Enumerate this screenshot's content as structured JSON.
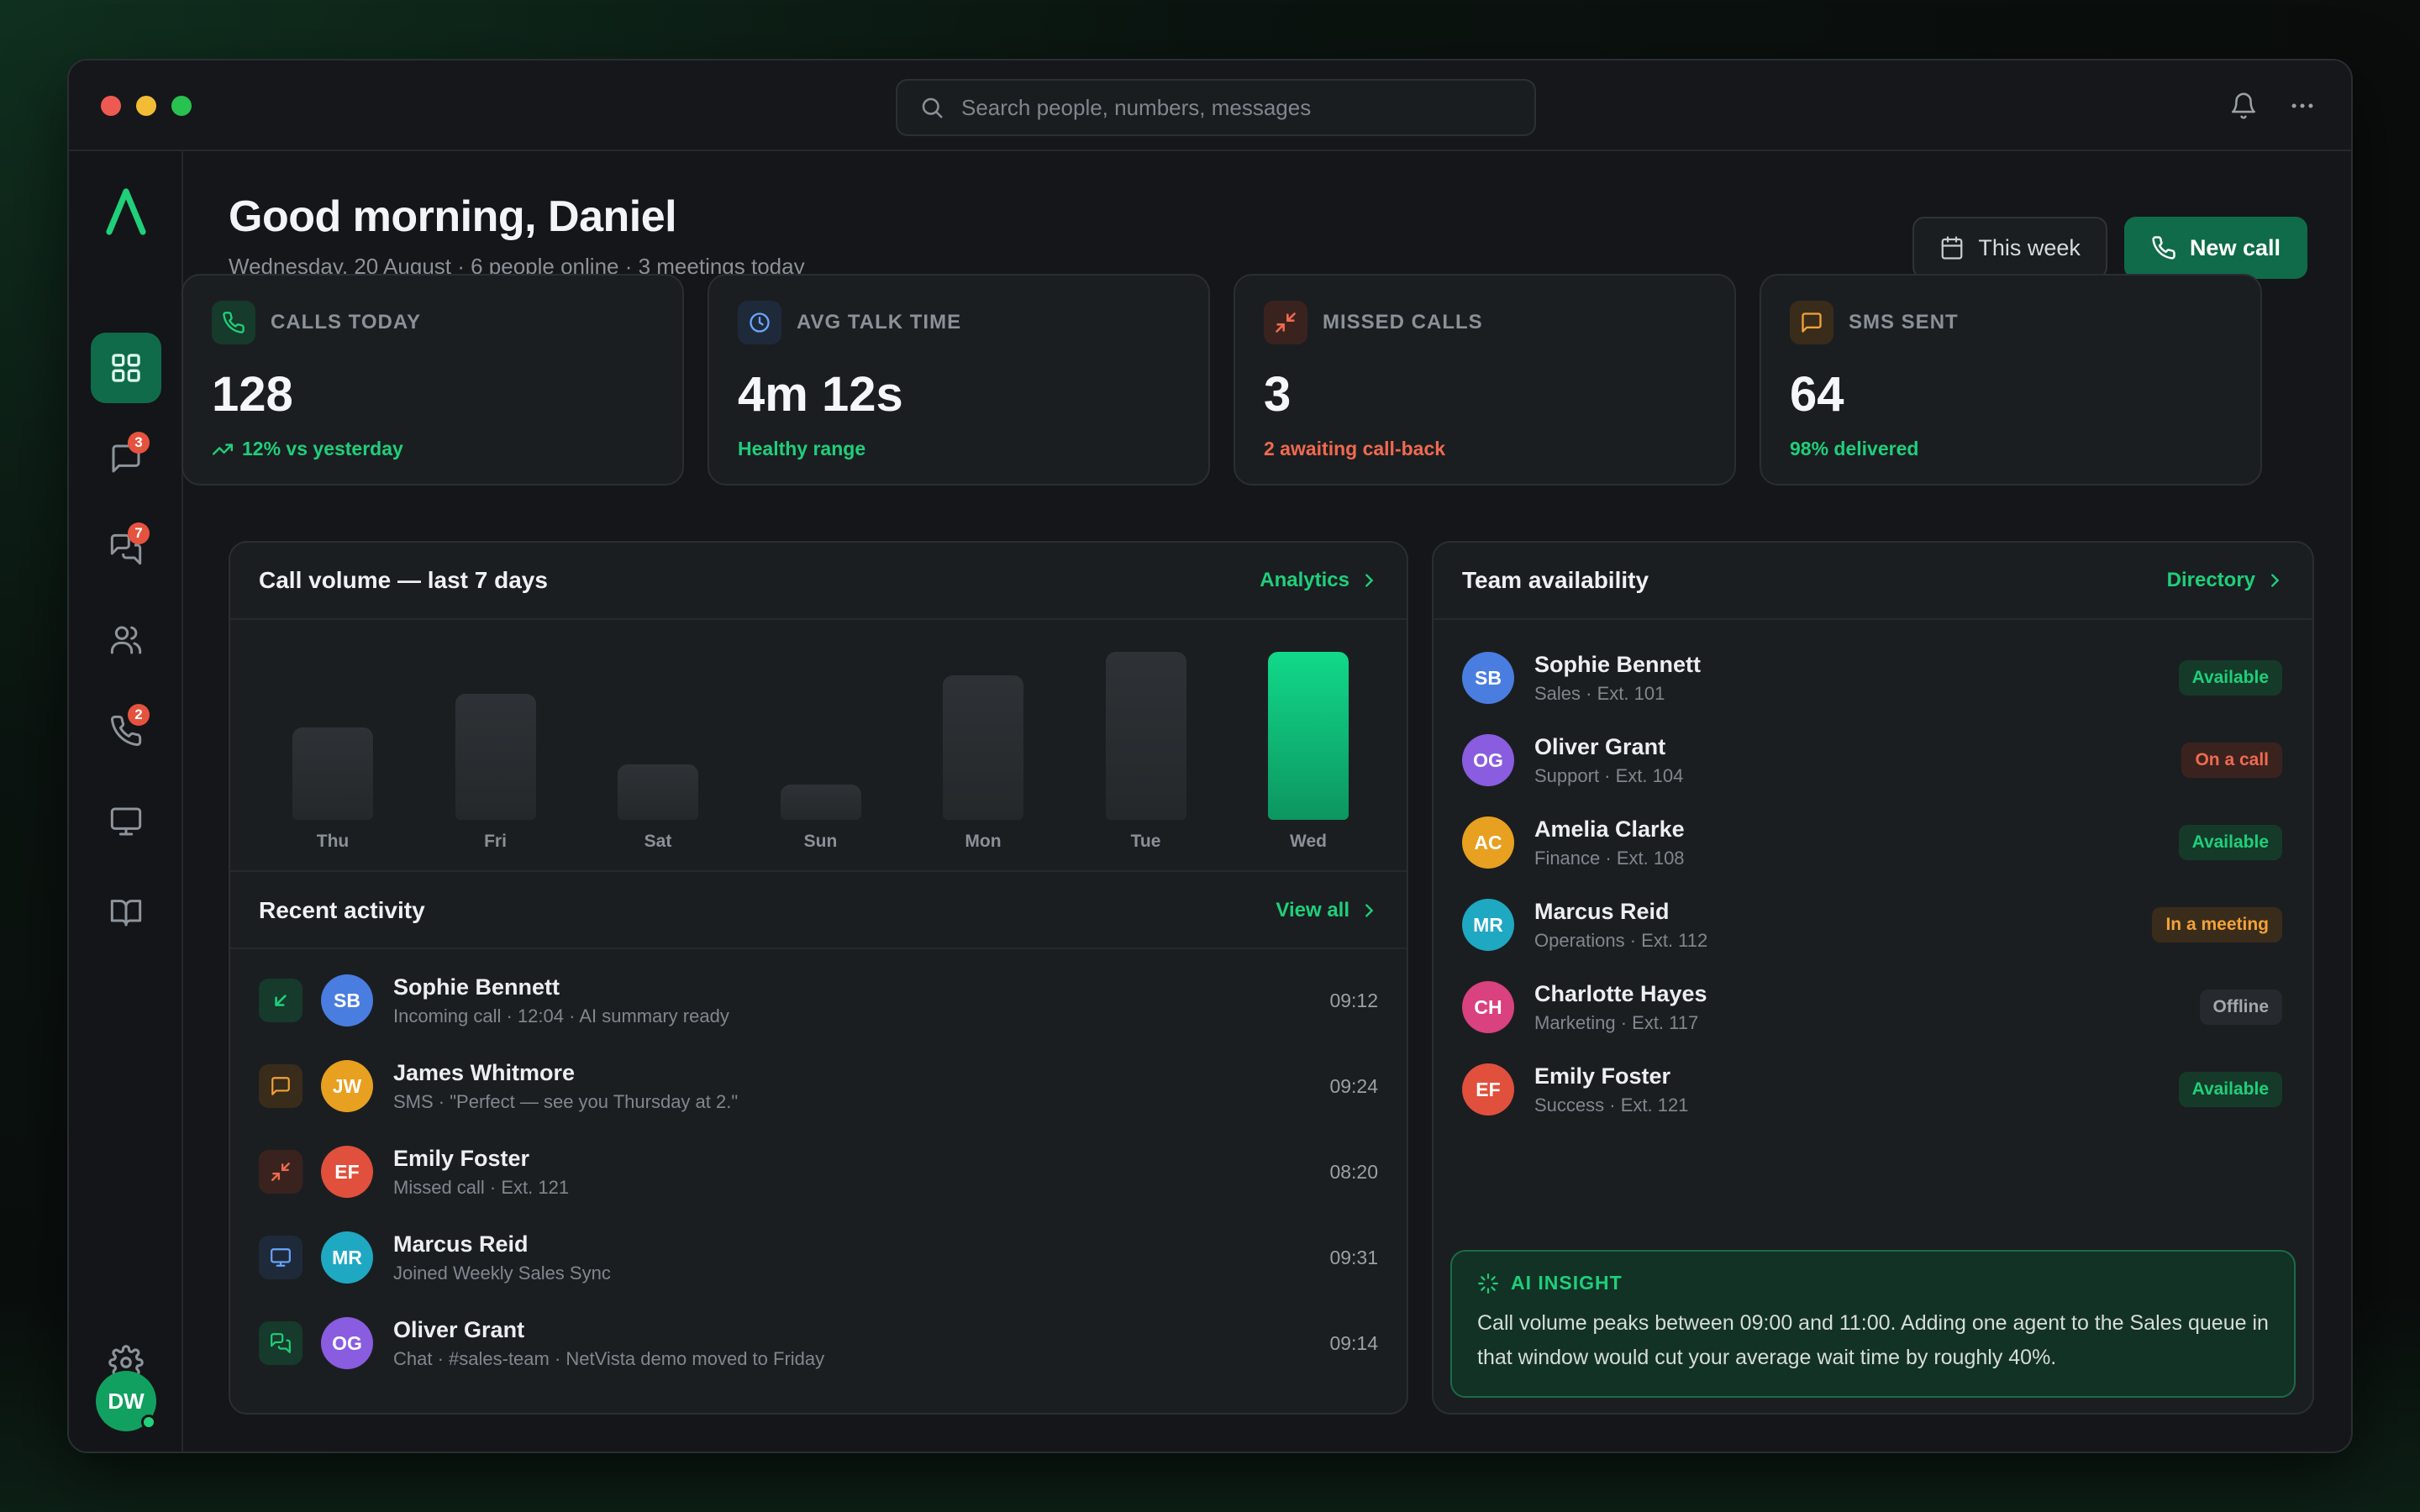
{
  "window": {
    "search_placeholder": "Search people, numbers, messages"
  },
  "sidebar": {
    "items": [
      {
        "icon": "grid-icon",
        "active": true
      },
      {
        "icon": "message-icon",
        "badge": "3"
      },
      {
        "icon": "chat-icon",
        "badge": "7"
      },
      {
        "icon": "users-icon"
      },
      {
        "icon": "phone-icon",
        "badge": "2"
      },
      {
        "icon": "monitor-icon"
      },
      {
        "icon": "book-icon"
      }
    ],
    "settings_icon": "gear-icon",
    "user_initials": "DW"
  },
  "header": {
    "greeting": "Good morning, Daniel",
    "subtitle": "Wednesday, 20 August · 6 people online · 3 meetings today",
    "range_button": "This week",
    "new_call_button": "New call"
  },
  "stats": [
    {
      "label": "CALLS TODAY",
      "value": "128",
      "sub": "12% vs yesterday",
      "color": "#1fcf7a"
    },
    {
      "label": "AVG TALK TIME",
      "value": "4m 12s",
      "sub": "Healthy range",
      "color": "#1fcf7a"
    },
    {
      "label": "MISSED CALLS",
      "value": "3",
      "sub": "2 awaiting call-back",
      "color": "#f06a4f"
    },
    {
      "label": "SMS SENT",
      "value": "64",
      "sub": "98% delivered",
      "color": "#1fcf7a"
    }
  ],
  "call_volume": {
    "title": "Call volume — last 7 days",
    "link": "Analytics"
  },
  "chart_data": {
    "type": "bar",
    "categories": [
      "Thu",
      "Fri",
      "Sat",
      "Sun",
      "Mon",
      "Tue",
      "Wed"
    ],
    "values": [
      55,
      75,
      33,
      21,
      86,
      100,
      100
    ],
    "highlight": "Wed",
    "title": "Call volume — last 7 days",
    "xlabel": "",
    "ylabel": "",
    "grid": false
  },
  "activity": {
    "title": "Recent activity",
    "link": "View all",
    "rows": [
      {
        "type": "incoming",
        "initials": "SB",
        "name": "Sophie Bennett",
        "detail": "Incoming call · 12:04 · AI summary ready",
        "time": "09:12",
        "avatar_color": "#4a7de0"
      },
      {
        "type": "sms",
        "initials": "JW",
        "name": "James Whitmore",
        "detail": "SMS · \"Perfect — see you Thursday at 2.\"",
        "time": "09:24",
        "avatar_color": "#e8a020"
      },
      {
        "type": "missed",
        "initials": "EF",
        "name": "Emily Foster",
        "detail": "Missed call · Ext. 121",
        "time": "08:20",
        "avatar_color": "#e0503c"
      },
      {
        "type": "meeting",
        "initials": "MR",
        "name": "Marcus Reid",
        "detail": "Joined Weekly Sales Sync",
        "time": "09:31",
        "avatar_color": "#1fa8c2"
      },
      {
        "type": "chat",
        "initials": "OG",
        "name": "Oliver Grant",
        "detail": "Chat · #sales-team · NetVista demo moved to Friday",
        "time": "09:14",
        "avatar_color": "#8a5ce0"
      }
    ]
  },
  "team": {
    "title": "Team availability",
    "link": "Directory",
    "members": [
      {
        "initials": "SB",
        "name": "Sophie Bennett",
        "detail": "Sales · Ext. 101",
        "status": "Available",
        "avatar_color": "#4a7de0"
      },
      {
        "initials": "OG",
        "name": "Oliver Grant",
        "detail": "Support · Ext. 104",
        "status": "On a call",
        "avatar_color": "#8a5ce0"
      },
      {
        "initials": "AC",
        "name": "Amelia Clarke",
        "detail": "Finance · Ext. 108",
        "status": "Available",
        "avatar_color": "#e8a020"
      },
      {
        "initials": "MR",
        "name": "Marcus Reid",
        "detail": "Operations · Ext. 112",
        "status": "In a meeting",
        "avatar_color": "#1fa8c2"
      },
      {
        "initials": "CH",
        "name": "Charlotte Hayes",
        "detail": "Marketing · Ext. 117",
        "status": "Offline",
        "avatar_color": "#d9417f"
      },
      {
        "initials": "EF",
        "name": "Emily Foster",
        "detail": "Success · Ext. 121",
        "status": "Available",
        "avatar_color": "#e0503c"
      }
    ]
  },
  "insight": {
    "label": "AI INSIGHT",
    "text": "Call volume peaks between 09:00 and 11:00. Adding one agent to the Sales queue in that window would cut your average wait time by roughly 40%."
  },
  "colors": {
    "accent": "#1fcf7a",
    "primary": "#0f6b4a",
    "danger": "#f06a4f",
    "warning": "#f2a23a"
  }
}
